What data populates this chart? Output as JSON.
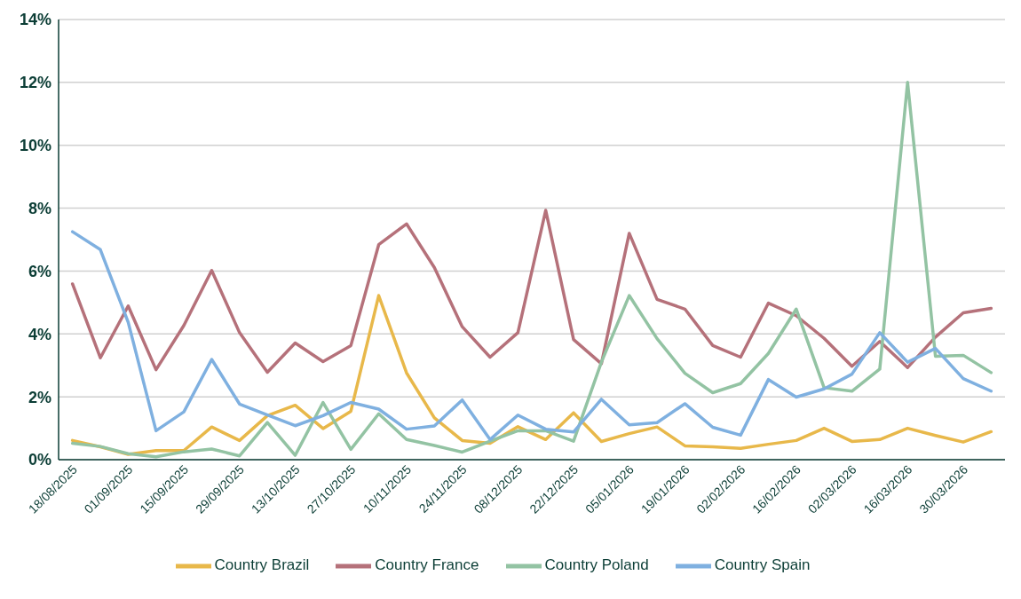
{
  "chart_data": {
    "type": "line",
    "categories": [
      "18/08/2025",
      null,
      "01/09/2025",
      null,
      "15/09/2025",
      null,
      "29/09/2025",
      null,
      "13/10/2025",
      null,
      "27/10/2025",
      null,
      "10/11/2025",
      null,
      "24/11/2025",
      null,
      "08/12/2025",
      null,
      "22/12/2025",
      null,
      "05/01/2026",
      null,
      "19/01/2026",
      null,
      "02/02/2026",
      null,
      "16/02/2026",
      null,
      "02/03/2026",
      null,
      "16/03/2026",
      null,
      "30/03/2026",
      null
    ],
    "series": [
      {
        "name": "Country Brazil",
        "color": "#e8b84a",
        "values": [
          0.61,
          0.41,
          0.17,
          0.29,
          0.29,
          1.04,
          0.61,
          1.4,
          1.73,
          0.99,
          1.54,
          5.22,
          2.76,
          1.33,
          0.61,
          0.52,
          1.05,
          0.64,
          1.49,
          0.58,
          0.83,
          1.04,
          0.44,
          0.41,
          0.36,
          0.49,
          0.61,
          1.0,
          0.58,
          0.64,
          1.0,
          0.77,
          0.56,
          0.89
        ]
      },
      {
        "name": "Country France",
        "color": "#b5717a",
        "values": [
          5.59,
          3.24,
          4.89,
          2.86,
          4.27,
          6.02,
          4.04,
          2.78,
          3.71,
          3.12,
          3.63,
          6.84,
          7.5,
          6.11,
          4.23,
          3.26,
          4.04,
          7.93,
          3.82,
          3.05,
          7.2,
          5.1,
          4.79,
          3.63,
          3.26,
          4.98,
          4.58,
          3.86,
          2.97,
          3.76,
          2.93,
          3.9,
          4.67,
          4.81
        ]
      },
      {
        "name": "Country Poland",
        "color": "#93c3a3",
        "values": [
          0.52,
          0.42,
          0.19,
          0.09,
          0.25,
          0.34,
          0.12,
          1.18,
          0.14,
          1.82,
          0.33,
          1.46,
          0.64,
          0.45,
          0.24,
          0.59,
          0.92,
          0.92,
          0.59,
          3.1,
          5.22,
          3.85,
          2.75,
          2.13,
          2.42,
          3.38,
          4.79,
          2.29,
          2.18,
          2.88,
          12.0,
          3.29,
          3.32,
          2.77
        ]
      },
      {
        "name": "Country Spain",
        "color": "#7fb0e0",
        "values": [
          7.25,
          6.68,
          4.37,
          0.92,
          1.52,
          3.19,
          1.77,
          1.42,
          1.08,
          1.4,
          1.82,
          1.61,
          0.97,
          1.07,
          1.9,
          0.64,
          1.42,
          0.97,
          0.88,
          1.92,
          1.11,
          1.18,
          1.78,
          1.03,
          0.78,
          2.55,
          1.99,
          2.25,
          2.72,
          4.04,
          3.1,
          3.54,
          2.58,
          2.18
        ]
      }
    ],
    "ylim": [
      0,
      14
    ],
    "yticks": [
      {
        "value": 0,
        "label": "0%"
      },
      {
        "value": 2,
        "label": "2%"
      },
      {
        "value": 4,
        "label": "4%"
      },
      {
        "value": 6,
        "label": "6%"
      },
      {
        "value": 8,
        "label": "8%"
      },
      {
        "value": 10,
        "label": "10%"
      },
      {
        "value": 12,
        "label": "12%"
      },
      {
        "value": 14,
        "label": "14%"
      }
    ],
    "grid": "y",
    "legend": "bottom",
    "marker": "none",
    "line_style": "solid"
  }
}
